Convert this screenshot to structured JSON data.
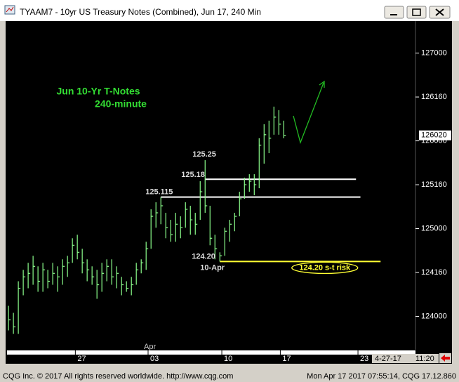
{
  "window": {
    "title": "TYAAM7 - 10yr US Treasury Notes (Combined), Jun 17, 240 Min",
    "status_left": "CQG Inc. © 2017 All rights reserved worldwide. http://www.cqg.com",
    "status_right": "Mon Apr 17 2017 07:55:14, CQG 17.12.860",
    "cursor_date": "4-27-17",
    "cursor_time": "11:20"
  },
  "chart_data": {
    "type": "ohlc",
    "title": "Jun 10-Yr T-Notes",
    "subtitle": "240-minute",
    "color": "#8cff8c",
    "xlim": [
      -0.3,
      82.8
    ],
    "ylim": [
      123.62,
      127.365
    ],
    "xticks": [
      {
        "value": 13.6,
        "label": "27"
      },
      {
        "value": 28.4,
        "label": "03"
      },
      {
        "value": 43.4,
        "label": "10"
      },
      {
        "value": 55.3,
        "label": "17"
      },
      {
        "value": 71.1,
        "label": "23"
      }
    ],
    "month_ticks": [
      {
        "value": 28.4,
        "label": "Apr"
      }
    ],
    "yticks": [
      {
        "value": 127.0,
        "label": "127000"
      },
      {
        "value": 126.5,
        "label": "126160"
      },
      {
        "value": 126.0,
        "label": "126000"
      },
      {
        "value": 125.5,
        "label": "125160"
      },
      {
        "value": 125.0,
        "label": "125000"
      },
      {
        "value": 124.5,
        "label": "124160"
      },
      {
        "value": 124.0,
        "label": "124000"
      }
    ],
    "last_price": {
      "value": 126.0625,
      "label": "126020"
    },
    "series": {
      "high": [
        124.12,
        124.04,
        124.4,
        124.53,
        124.61,
        124.69,
        124.57,
        124.61,
        124.53,
        124.61,
        124.57,
        124.65,
        124.69,
        124.89,
        124.93,
        124.77,
        124.65,
        124.57,
        124.53,
        124.61,
        124.65,
        124.65,
        124.57,
        124.45,
        124.4,
        124.45,
        124.61,
        124.65,
        124.85,
        125.22,
        125.3,
        125.36,
        125.18,
        125.1,
        125.18,
        125.14,
        125.3,
        125.26,
        125.18,
        125.54,
        125.78,
        125.26,
        124.93,
        124.73,
        125.01,
        125.1,
        125.18,
        125.42,
        125.58,
        125.62,
        125.62,
        126.03,
        126.19,
        126.23,
        126.39,
        126.35,
        126.23
      ],
      "low": [
        123.84,
        123.8,
        123.8,
        124.24,
        124.32,
        124.36,
        124.28,
        124.28,
        124.32,
        124.36,
        124.28,
        124.36,
        124.45,
        124.61,
        124.65,
        124.49,
        124.4,
        124.36,
        124.2,
        124.28,
        124.4,
        124.36,
        124.32,
        124.24,
        124.28,
        124.24,
        124.36,
        124.49,
        124.53,
        124.77,
        125.01,
        125.05,
        124.89,
        124.85,
        124.85,
        124.89,
        125.01,
        124.93,
        124.93,
        125.1,
        125.18,
        124.81,
        124.65,
        124.625,
        124.69,
        124.85,
        124.97,
        125.14,
        125.34,
        125.42,
        125.38,
        125.46,
        125.74,
        125.86,
        126.07,
        126.07,
        126.03
      ],
      "close": [
        123.96,
        123.88,
        124.32,
        124.45,
        124.49,
        124.57,
        124.4,
        124.53,
        124.4,
        124.49,
        124.45,
        124.57,
        124.61,
        124.81,
        124.73,
        124.61,
        124.53,
        124.45,
        124.36,
        124.49,
        124.57,
        124.45,
        124.49,
        124.36,
        124.32,
        124.36,
        124.53,
        124.61,
        124.77,
        125.14,
        125.18,
        125.26,
        125.01,
        124.93,
        125.05,
        125.01,
        125.22,
        125.1,
        125.05,
        125.42,
        125.26,
        124.89,
        124.77,
        124.69,
        124.97,
        125.05,
        125.14,
        125.34,
        125.5,
        125.54,
        125.5,
        125.95,
        126.07,
        126.03,
        126.27,
        126.19,
        126.0625
      ]
    },
    "annotations": [
      {
        "label": "125.25",
        "value": 125.78125,
        "at": 40
      },
      {
        "label": "125.18",
        "value": 125.5625,
        "at": 40
      },
      {
        "label": "125.115",
        "value": 125.359375,
        "at": 31
      },
      {
        "label": "124.20",
        "value": 124.625,
        "at": 43
      }
    ],
    "date_note": "10-Apr",
    "levels": [
      {
        "value": 125.5625,
        "from": 40,
        "to": 70.7,
        "color": "#ffffff"
      },
      {
        "value": 125.359375,
        "from": 31,
        "to": 71.6,
        "color": "#ffffff"
      },
      {
        "value": 124.625,
        "from": 43,
        "to": 75.7,
        "color": "#ffff33"
      }
    ],
    "risk_label": "124.20 s-t risk"
  }
}
